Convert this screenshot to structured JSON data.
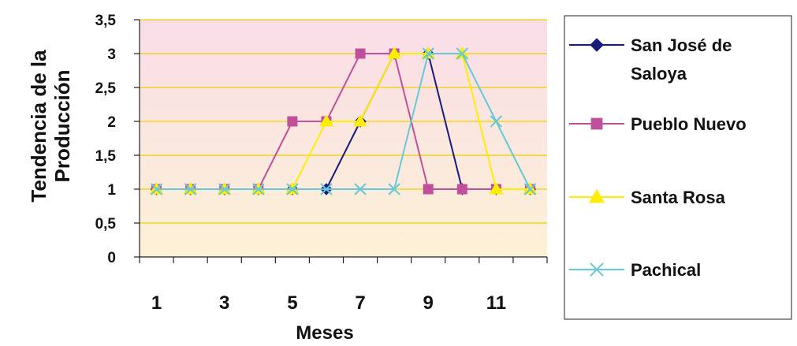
{
  "chart_data": {
    "type": "line",
    "title": "",
    "xlabel": "Meses",
    "ylabel_lines": [
      "Tendencia de la",
      "Producción"
    ],
    "x": [
      1,
      2,
      3,
      4,
      5,
      6,
      7,
      8,
      9,
      10,
      11,
      12
    ],
    "x_tick_labels": [
      "1",
      "3",
      "5",
      "7",
      "9",
      "11"
    ],
    "x_tick_label_values": [
      1,
      3,
      5,
      7,
      9,
      11
    ],
    "ylim": [
      0,
      3.5
    ],
    "y_tick_labels": [
      "0",
      "0,5",
      "1",
      "1,5",
      "2",
      "2,5",
      "3",
      "3,5"
    ],
    "y_tick_values": [
      0,
      0.5,
      1,
      1.5,
      2,
      2.5,
      3,
      3.5
    ],
    "grid": true,
    "legend_position": "right",
    "plot_background": {
      "top": "#f9dde8",
      "bottom": "#fdf1d6"
    },
    "grid_color": "#f0d000",
    "series": [
      {
        "name": "San José de Saloya",
        "legend_lines": [
          "San José de",
          "Saloya"
        ],
        "color": "#1a1a7a",
        "marker": "diamond",
        "values": [
          1,
          1,
          1,
          1,
          1,
          1,
          2,
          3,
          3,
          1,
          1,
          1
        ]
      },
      {
        "name": "Pueblo Nuevo",
        "legend_lines": [
          "Pueblo Nuevo"
        ],
        "color": "#c0509a",
        "marker": "square",
        "values": [
          1,
          1,
          1,
          1,
          2,
          2,
          3,
          3,
          1,
          1,
          1,
          1
        ]
      },
      {
        "name": "Santa Rosa",
        "legend_lines": [
          "Santa Rosa"
        ],
        "color": "#ffee00",
        "marker": "triangle",
        "values": [
          1,
          1,
          1,
          1,
          1,
          2,
          2,
          3,
          3,
          3,
          1,
          1
        ]
      },
      {
        "name": "Pachical",
        "legend_lines": [
          "Pachical"
        ],
        "color": "#66c8d8",
        "marker": "x",
        "values": [
          1,
          1,
          1,
          1,
          1,
          1,
          1,
          1,
          3,
          3,
          2,
          1
        ]
      }
    ]
  }
}
